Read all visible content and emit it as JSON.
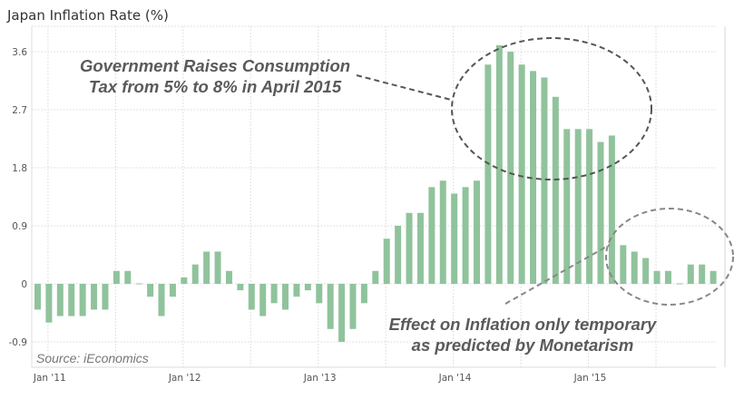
{
  "chart_data": {
    "type": "bar",
    "title": "Japan Inflation Rate (%)",
    "xlabel": "",
    "ylabel": "",
    "ylim": [
      -1.2,
      4.0
    ],
    "yticks": [
      -0.9,
      0,
      0.9,
      1.8,
      2.7,
      3.6
    ],
    "ytick_labels": [
      "-0.9",
      "0",
      "0.9",
      "1.8",
      "2.7",
      "3.6"
    ],
    "xtick_labels": [
      "Jan '11",
      "Jan '12",
      "Jan '13",
      "Jan '14",
      "Jan '15"
    ],
    "grid": true,
    "legend": "none",
    "source": "Source: iEconomics",
    "categories": [
      "Dec 2010",
      "Jan 2011",
      "Feb 2011",
      "Mar 2011",
      "Apr 2011",
      "May 2011",
      "Jun 2011",
      "Jul 2011",
      "Aug 2011",
      "Sep 2011",
      "Oct 2011",
      "Nov 2011",
      "Dec 2011",
      "Jan 2012",
      "Feb 2012",
      "Mar 2012",
      "Apr 2012",
      "May 2012",
      "Jun 2012",
      "Jul 2012",
      "Aug 2012",
      "Sep 2012",
      "Oct 2012",
      "Nov 2012",
      "Dec 2012",
      "Jan 2013",
      "Feb 2013",
      "Mar 2013",
      "Apr 2013",
      "May 2013",
      "Jun 2013",
      "Jul 2013",
      "Aug 2013",
      "Sep 2013",
      "Oct 2013",
      "Nov 2013",
      "Dec 2013",
      "Jan 2014",
      "Feb 2014",
      "Mar 2014",
      "Apr 2014",
      "May 2014",
      "Jun 2014",
      "Jul 2014",
      "Aug 2014",
      "Sep 2014",
      "Oct 2014",
      "Nov 2014",
      "Dec 2014",
      "Jan 2015",
      "Feb 2015",
      "Mar 2015",
      "Apr 2015",
      "May 2015",
      "Jun 2015",
      "Jul 2015",
      "Aug 2015",
      "Sep 2015",
      "Oct 2015",
      "Nov 2015",
      "Dec 2015"
    ],
    "values": [
      -0.4,
      -0.6,
      -0.5,
      -0.5,
      -0.5,
      -0.4,
      -0.4,
      0.2,
      0.2,
      0.0,
      -0.2,
      -0.5,
      -0.2,
      0.1,
      0.3,
      0.5,
      0.5,
      0.2,
      -0.1,
      -0.4,
      -0.5,
      -0.3,
      -0.4,
      -0.2,
      -0.1,
      -0.3,
      -0.7,
      -0.9,
      -0.7,
      -0.3,
      0.2,
      0.7,
      0.9,
      1.1,
      1.1,
      1.5,
      1.6,
      1.4,
      1.5,
      1.6,
      3.4,
      3.7,
      3.6,
      3.4,
      3.3,
      3.2,
      2.9,
      2.4,
      2.4,
      2.4,
      2.2,
      2.3,
      0.6,
      0.5,
      0.4,
      0.2,
      0.2,
      0.0,
      0.3,
      0.3,
      0.2
    ],
    "annotations": [
      {
        "text_lines": [
          "Government Raises Consumption",
          "Tax from 5% to 8% in April 2015"
        ],
        "target": "Apr 2014 - Mar 2015 peak"
      },
      {
        "text_lines": [
          "Effect on Inflation only temporary",
          "as predicted by Monetarism"
        ],
        "target": "Apr 2015 - Dec 2015"
      }
    ]
  },
  "colors": {
    "bar": "#90c39c",
    "annotation_primary": "#555555",
    "annotation_secondary": "#888888"
  }
}
